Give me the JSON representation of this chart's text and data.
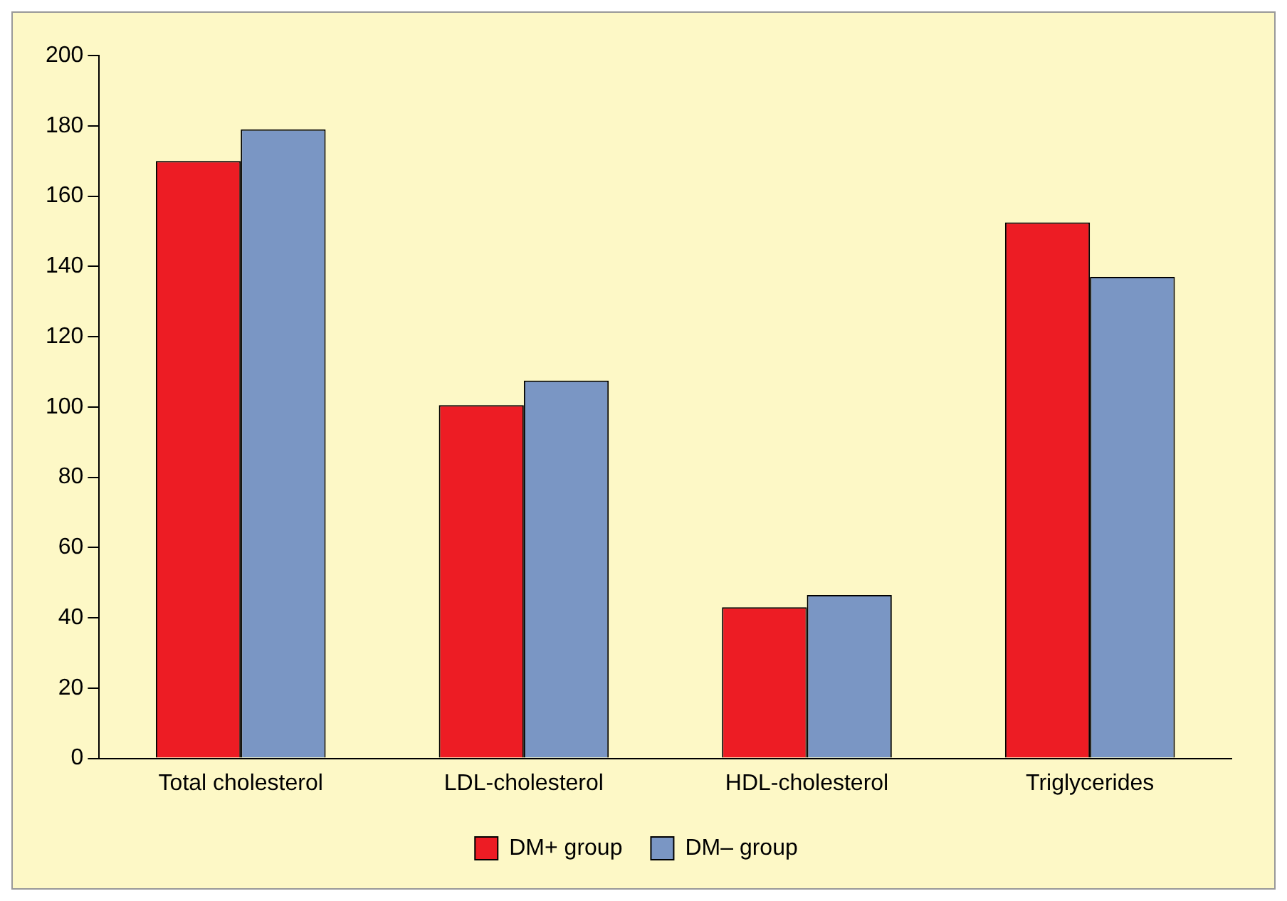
{
  "chart_data": {
    "type": "bar",
    "categories": [
      "Total cholesterol",
      "LDL-cholesterol",
      "HDL-cholesterol",
      "Triglycerides"
    ],
    "series": [
      {
        "name": "DM+ group",
        "color": "#ed1c24",
        "values": [
          170,
          100.5,
          43,
          152.5
        ]
      },
      {
        "name": "DM– group",
        "color": "#7a96c4",
        "values": [
          179,
          107.5,
          46.5,
          137
        ]
      }
    ],
    "ylim": [
      0,
      200
    ],
    "yticks": [
      0,
      20,
      40,
      60,
      80,
      100,
      120,
      140,
      160,
      180,
      200
    ],
    "grid": false,
    "legend": "bottom"
  }
}
